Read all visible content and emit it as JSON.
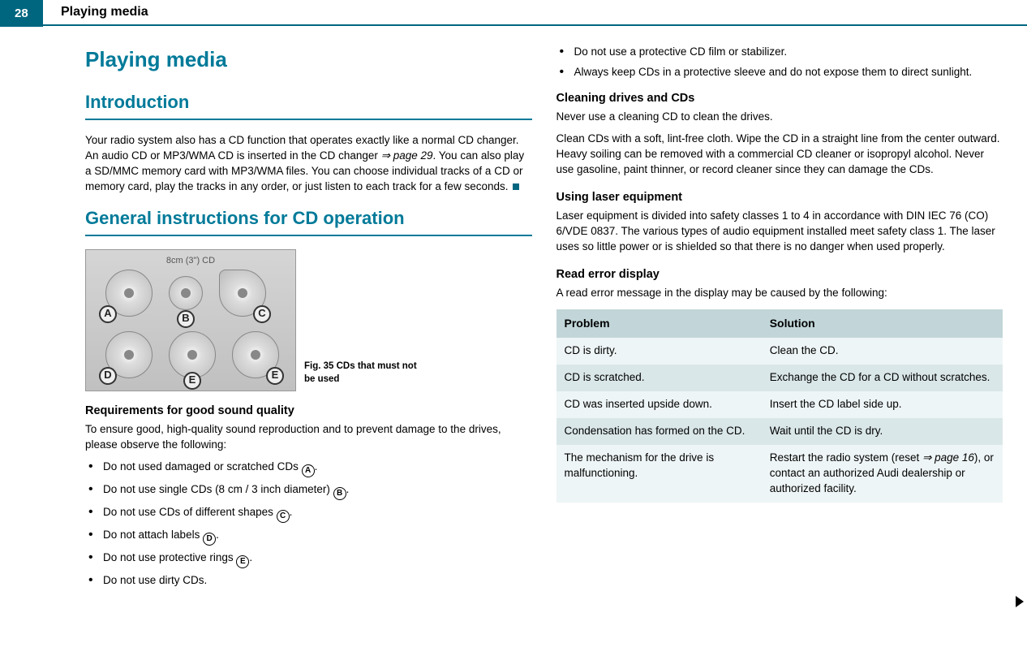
{
  "page_number": "28",
  "header": "Playing media",
  "main_title": "Playing media",
  "section_intro_title": "Introduction",
  "intro_paragraph_pre": "Your radio system also has a CD function that operates exactly like a normal CD changer. An audio CD or MP3/WMA CD is inserted in the CD changer ",
  "intro_ref": "⇒ page 29",
  "intro_paragraph_post": ". You can also play a SD/MMC memory card with MP3/WMA files. You can choose individual tracks of a CD or memory card, play the tracks in any order, or just listen to each track for a few seconds.",
  "section_cd_title": "General instructions for CD operation",
  "figure": {
    "top_label": "8cm (3\") CD",
    "letters": [
      "A",
      "B",
      "C",
      "D",
      "E",
      "E"
    ],
    "caption": "Fig. 35   CDs that must not be used"
  },
  "requirements_heading": "Requirements for good sound quality",
  "requirements_text": "To ensure good, high-quality sound reproduction and to prevent damage to the drives, please observe the following:",
  "bullets_left": [
    {
      "text": "Do not used damaged or scratched CDs ",
      "circ": "A",
      "suffix": "."
    },
    {
      "text": "Do not use single CDs (8 cm / 3 inch diameter) ",
      "circ": "B",
      "suffix": "."
    },
    {
      "text": "Do not use CDs of different shapes ",
      "circ": "C",
      "suffix": "."
    },
    {
      "text": "Do not attach labels ",
      "circ": "D",
      "suffix": "."
    },
    {
      "text": "Do not use protective rings ",
      "circ": "E",
      "suffix": "."
    },
    {
      "text": "Do not use dirty CDs.",
      "circ": "",
      "suffix": ""
    }
  ],
  "bullets_right": [
    "Do not use a protective CD film or stabilizer.",
    "Always keep CDs in a protective sleeve and do not expose them to direct sunlight."
  ],
  "cleaning_heading": "Cleaning drives and CDs",
  "cleaning_p1": "Never use a cleaning CD to clean the drives.",
  "cleaning_p2": "Clean CDs with a soft, lint-free cloth. Wipe the CD in a straight line from the center outward. Heavy soiling can be removed with a commercial CD cleaner or isopropyl alcohol. Never use gasoline, paint thinner, or record cleaner since they can damage the CDs.",
  "laser_heading": "Using laser equipment",
  "laser_text": "Laser equipment is divided into safety classes 1 to 4 in accordance with DIN IEC 76 (CO) 6/VDE 0837. The various types of audio equipment installed meet safety class 1. The laser uses so little power or is shielded so that there is no danger when used properly.",
  "read_error_heading": "Read error display",
  "read_error_text": "A read error message in the display may be caused by the following:",
  "table": {
    "col1": "Problem",
    "col2": "Solution",
    "rows": [
      {
        "p": "CD is dirty.",
        "s": "Clean the CD."
      },
      {
        "p": "CD is scratched.",
        "s": "Exchange the CD for a CD without scratches."
      },
      {
        "p": "CD was inserted upside down.",
        "s": "Insert the CD label side up."
      },
      {
        "p": "Condensation has formed on the CD.",
        "s": "Wait until the CD is dry."
      },
      {
        "p": "The mechanism for the drive is malfunctioning.",
        "s_pre": "Restart the radio system (reset ",
        "s_ref": "⇒ page 16",
        "s_post": "), or contact an authorized Audi dealership or authorized facility."
      }
    ]
  }
}
